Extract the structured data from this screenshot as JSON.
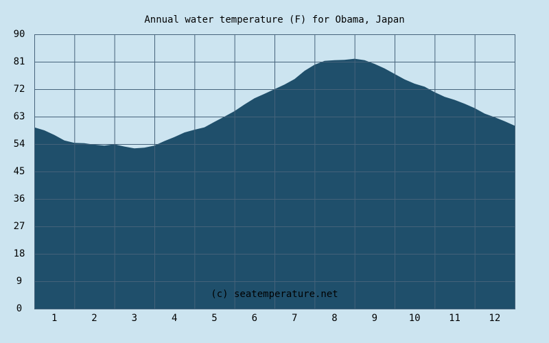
{
  "chart_data": {
    "type": "area",
    "title": "Annual water temperature (F) for Obama, Japan",
    "watermark": "(c) seatemperature.net",
    "xlabel": "",
    "ylabel": "",
    "x_ticks": [
      "1",
      "2",
      "3",
      "4",
      "5",
      "6",
      "7",
      "8",
      "9",
      "10",
      "11",
      "12"
    ],
    "y_ticks": [
      "0",
      "9",
      "18",
      "27",
      "36",
      "45",
      "54",
      "63",
      "72",
      "81",
      "90"
    ],
    "xlim": [
      0.5,
      12.5
    ],
    "ylim": [
      0,
      90
    ],
    "grid": true,
    "legend": "none",
    "fill_color": "#1f4f6b",
    "grid_color": "#45627a",
    "background": "#cce4f0",
    "series": [
      {
        "x": [
          0.5,
          0.75,
          1.0,
          1.25,
          1.5,
          1.75,
          2.0,
          2.25,
          2.5,
          2.75,
          3.0,
          3.25,
          3.5,
          3.75,
          4.0,
          4.25,
          4.5,
          4.75,
          5.0,
          5.25,
          5.5,
          5.75,
          6.0,
          6.25,
          6.5,
          6.75,
          7.0,
          7.25,
          7.5,
          7.75,
          8.0,
          8.25,
          8.5,
          8.75,
          9.0,
          9.25,
          9.5,
          9.75,
          10.0,
          10.25,
          10.5,
          10.75,
          11.0,
          11.25,
          11.5,
          11.75,
          12.0,
          12.25,
          12.5
        ],
        "values": [
          59.5,
          58.5,
          57,
          55.2,
          54.4,
          54.3,
          53.8,
          53.5,
          53.9,
          53.2,
          52.6,
          52.8,
          53.5,
          55,
          56.3,
          57.8,
          58.7,
          59.5,
          61.3,
          63,
          64.8,
          67,
          69,
          70.5,
          72,
          73.5,
          75.3,
          78,
          80,
          81.3,
          81.5,
          81.6,
          82,
          81.5,
          80.3,
          78.8,
          77,
          75.2,
          73.8,
          72.8,
          71,
          69.5,
          68.5,
          67.2,
          65.8,
          64,
          62.8,
          61.5,
          60
        ]
      }
    ]
  }
}
